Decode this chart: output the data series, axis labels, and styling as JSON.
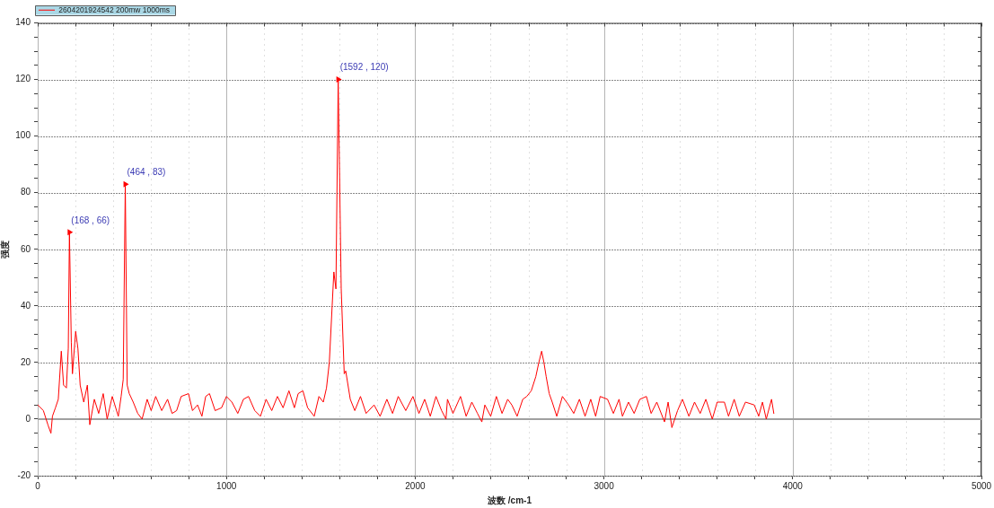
{
  "chart_data": {
    "type": "line",
    "xlabel": "波数 /cm-1",
    "ylabel": "强度",
    "x": [
      0,
      30,
      54,
      70,
      78,
      94,
      109,
      125,
      137,
      152,
      162,
      168,
      178,
      184,
      201,
      213,
      225,
      244,
      263,
      276,
      300,
      323,
      347,
      368,
      395,
      427,
      442,
      453,
      464,
      474,
      485,
      506,
      530,
      553,
      580,
      601,
      625,
      657,
      688,
      712,
      736,
      760,
      799,
      820,
      847,
      870,
      890,
      910,
      940,
      974,
      1000,
      1029,
      1060,
      1090,
      1117,
      1150,
      1180,
      1210,
      1240,
      1270,
      1300,
      1331,
      1360,
      1380,
      1405,
      1430,
      1465,
      1490,
      1513,
      1530,
      1545,
      1560,
      1569,
      1580,
      1592,
      1608,
      1624,
      1632,
      1656,
      1680,
      1710,
      1740,
      1782,
      1814,
      1850,
      1880,
      1910,
      1950,
      1988,
      2020,
      2050,
      2080,
      2110,
      2140,
      2163,
      2171,
      2200,
      2240,
      2270,
      2300,
      2330,
      2353,
      2369,
      2400,
      2430,
      2460,
      2490,
      2512,
      2540,
      2570,
      2591,
      2615,
      2639,
      2655,
      2670,
      2682,
      2694,
      2710,
      2726,
      2750,
      2780,
      2813,
      2840,
      2870,
      2900,
      2930,
      2956,
      2980,
      3019,
      3050,
      3080,
      3098,
      3130,
      3160,
      3190,
      3225,
      3250,
      3280,
      3321,
      3340,
      3360,
      3390,
      3416,
      3450,
      3480,
      3510,
      3540,
      3574,
      3600,
      3638,
      3660,
      3690,
      3717,
      3750,
      3796,
      3820,
      3840,
      3860,
      3888,
      3900
    ],
    "series": [
      {
        "name": "2604201924542 200mw 1000ms",
        "color": "#ff0000",
        "values": [
          5,
          3,
          -2,
          -5,
          1,
          4,
          7,
          24,
          12,
          11,
          25,
          66,
          27,
          16,
          31,
          25,
          12,
          6,
          12,
          -2,
          7,
          2,
          9,
          0,
          8,
          1,
          8,
          14,
          83,
          12,
          9,
          6,
          2,
          0,
          7,
          3,
          8,
          3,
          7,
          2,
          3,
          8,
          9,
          3,
          5,
          1,
          8,
          9,
          3,
          4,
          8,
          6,
          2,
          7,
          8,
          3,
          1,
          7,
          3,
          8,
          4,
          10,
          4,
          9,
          10,
          4,
          1,
          8,
          6,
          11,
          20,
          40,
          52,
          46,
          120,
          46,
          16,
          17,
          7,
          3,
          8,
          2,
          5,
          1,
          7,
          2,
          8,
          3,
          8,
          2,
          7,
          1,
          8,
          3,
          0,
          7,
          2,
          8,
          1,
          6,
          2,
          -1,
          5,
          1,
          8,
          2,
          7,
          5,
          1,
          7,
          8,
          10,
          15,
          20,
          24,
          20,
          15,
          9,
          6,
          1,
          8,
          5,
          2,
          7,
          1,
          7,
          1,
          8,
          7,
          2,
          7,
          1,
          6,
          2,
          7,
          8,
          2,
          6,
          -1,
          6,
          -3,
          3,
          7,
          1,
          6,
          2,
          7,
          0,
          6,
          6,
          1,
          7,
          1,
          6,
          5,
          1,
          6,
          0,
          7,
          2
        ]
      },
      {
        "type": "scatter",
        "color": "#ff0000",
        "marker": "triangle",
        "x": [
          168,
          464,
          1592
        ],
        "values": [
          66,
          83,
          120
        ]
      }
    ],
    "xlim": [
      0,
      5000
    ],
    "xticks": [
      0,
      {
        "value": 200,
        "label": null
      },
      {
        "value": 400,
        "label": null
      },
      {
        "value": 600,
        "label": null
      },
      {
        "value": 800,
        "label": null
      },
      1000,
      {
        "value": 1200,
        "label": null
      },
      {
        "value": 1400,
        "label": null
      },
      {
        "value": 1600,
        "label": null
      },
      {
        "value": 1800,
        "label": null
      },
      2000,
      {
        "value": 2200,
        "label": null
      },
      {
        "value": 2400,
        "label": null
      },
      {
        "value": 2600,
        "label": null
      },
      {
        "value": 2800,
        "label": null
      },
      3000,
      {
        "value": 3200,
        "label": null
      },
      {
        "value": 3400,
        "label": null
      },
      {
        "value": 3600,
        "label": null
      },
      {
        "value": 3800,
        "label": null
      },
      4000,
      {
        "value": 4200,
        "label": null
      },
      {
        "value": 4400,
        "label": null
      },
      {
        "value": 4600,
        "label": null
      },
      {
        "value": 4800,
        "label": null
      },
      5000
    ],
    "ylim": [
      -20,
      140
    ],
    "yticks": [
      -20,
      {
        "value": -15,
        "label": null
      },
      {
        "value": -10,
        "label": null
      },
      {
        "value": -5,
        "label": null
      },
      0,
      {
        "value": 5,
        "label": null
      },
      {
        "value": 10,
        "label": null
      },
      {
        "value": 15,
        "label": null
      },
      20,
      {
        "value": 25,
        "label": null
      },
      {
        "value": 30,
        "label": null
      },
      {
        "value": 35,
        "label": null
      },
      40,
      {
        "value": 45,
        "label": null
      },
      {
        "value": 50,
        "label": null
      },
      {
        "value": 55,
        "label": null
      },
      60,
      {
        "value": 65,
        "label": null
      },
      {
        "value": 70,
        "label": null
      },
      {
        "value": 75,
        "label": null
      },
      80,
      {
        "value": 85,
        "label": null
      },
      {
        "value": 90,
        "label": null
      },
      {
        "value": 95,
        "label": null
      },
      100,
      {
        "value": 105,
        "label": null
      },
      {
        "value": 110,
        "label": null
      },
      {
        "value": 115,
        "label": null
      },
      120,
      {
        "value": 125,
        "label": null
      },
      {
        "value": 130,
        "label": null
      },
      {
        "value": 135,
        "label": null
      },
      140
    ],
    "grid": true,
    "legend": "top left",
    "ref_lines": [
      {
        "axis": "y",
        "value": 0,
        "color": "#a0a0a0"
      }
    ],
    "annotations": [
      {
        "text": "(168 , 66)",
        "x": 168,
        "y": 66
      },
      {
        "text": "(464 , 83)",
        "x": 464,
        "y": 83
      },
      {
        "text": "(1592 , 120)",
        "x": 1592,
        "y": 120
      }
    ]
  }
}
